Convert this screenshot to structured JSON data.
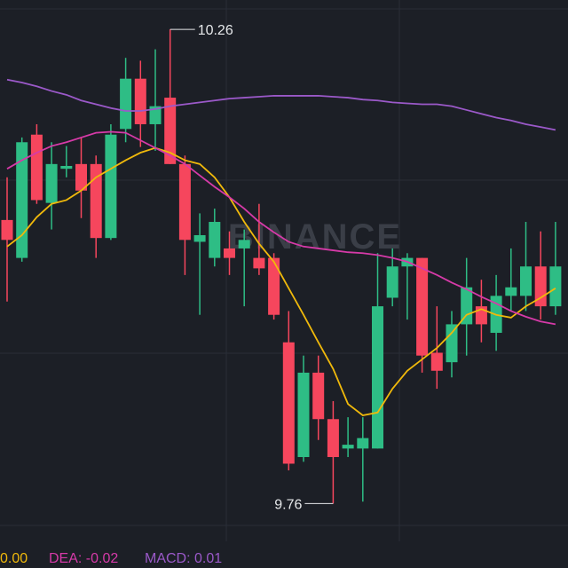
{
  "chart_data": {
    "type": "candlestick",
    "watermark": "BINANCE",
    "ylim": [
      9.692,
      10.291
    ],
    "up_color": "#2ebd85",
    "down_color": "#f6465d",
    "open": [
      10.059,
      10.019,
      10.149,
      10.077,
      10.113,
      10.118,
      10.118,
      10.04,
      10.155,
      10.208,
      10.16,
      10.188,
      10.118,
      10.036,
      10.019,
      10.029,
      10.029,
      10.019,
      10.019,
      9.93,
      9.809,
      9.898,
      9.849,
      9.818,
      9.818,
      9.818,
      9.977,
      10.01,
      10.019,
      9.919,
      9.909,
      9.949,
      9.968,
      9.94,
      9.979,
      9.979,
      10.01,
      9.968
    ],
    "high": [
      10.104,
      10.146,
      10.16,
      10.141,
      10.137,
      10.146,
      10.127,
      10.16,
      10.23,
      10.227,
      10.239,
      10.26,
      10.127,
      10.066,
      10.071,
      10.047,
      10.049,
      10.076,
      10.024,
      9.963,
      9.916,
      9.916,
      9.868,
      9.851,
      9.851,
      10.024,
      10.029,
      10.024,
      10.019,
      9.968,
      9.963,
      10.019,
      9.996,
      10.001,
      10.029,
      10.057,
      10.047,
      10.057
    ],
    "low": [
      9.973,
      10.015,
      10.076,
      10.049,
      10.104,
      10.061,
      10.019,
      10.038,
      10.141,
      10.136,
      10.132,
      10.118,
      10.001,
      9.959,
      10.01,
      10.001,
      9.968,
      10.001,
      9.954,
      9.795,
      9.804,
      9.827,
      9.76,
      9.809,
      9.762,
      9.818,
      9.968,
      9.954,
      9.898,
      9.881,
      9.893,
      9.916,
      9.93,
      9.921,
      9.963,
      9.963,
      9.954,
      9.959
    ],
    "close": [
      10.038,
      10.141,
      10.08,
      10.118,
      10.116,
      10.09,
      10.04,
      10.149,
      10.208,
      10.16,
      10.179,
      10.118,
      10.038,
      10.043,
      10.057,
      10.019,
      10.038,
      10.008,
      9.959,
      9.802,
      9.898,
      9.849,
      9.809,
      9.822,
      9.829,
      9.968,
      10.01,
      10.019,
      9.916,
      9.9,
      9.949,
      9.988,
      9.949,
      9.979,
      9.988,
      10.01,
      9.968,
      10.01
    ],
    "overlays": [
      {
        "color": "#f0b90b",
        "values": [
          10.031,
          10.043,
          10.062,
          10.076,
          10.08,
          10.09,
          10.104,
          10.113,
          10.122,
          10.13,
          10.135,
          10.13,
          10.122,
          10.118,
          10.104,
          10.083,
          10.057,
          10.034,
          10.015,
          9.987,
          9.959,
          9.93,
          9.902,
          9.865,
          9.853,
          9.856,
          9.881,
          9.9,
          9.912,
          9.924,
          9.94,
          9.959,
          9.965,
          9.959,
          9.956,
          9.968,
          9.977,
          9.987
        ]
      },
      {
        "color": "#d63aa8",
        "values": [
          10.113,
          10.122,
          10.13,
          10.137,
          10.141,
          10.146,
          10.151,
          10.152,
          10.151,
          10.143,
          10.135,
          10.127,
          10.118,
          10.106,
          10.094,
          10.083,
          10.071,
          10.057,
          10.046,
          10.036,
          10.031,
          10.029,
          10.027,
          10.025,
          10.024,
          10.022,
          10.019,
          10.015,
          10.008,
          10.001,
          9.993,
          9.986,
          9.978,
          9.971,
          9.963,
          9.957,
          9.952,
          9.949
        ]
      },
      {
        "color": "#9b59c9",
        "values": [
          10.207,
          10.204,
          10.2,
          10.195,
          10.191,
          10.185,
          10.181,
          10.177,
          10.174,
          10.174,
          10.176,
          10.179,
          10.181,
          10.183,
          10.185,
          10.187,
          10.188,
          10.189,
          10.19,
          10.19,
          10.19,
          10.19,
          10.189,
          10.188,
          10.186,
          10.185,
          10.183,
          10.182,
          10.181,
          10.181,
          10.179,
          10.175,
          10.171,
          10.167,
          10.164,
          10.16,
          10.157,
          10.154
        ]
      }
    ],
    "indicators": [
      {
        "text": "0.00",
        "color": "#f0b90b"
      },
      {
        "text": "DEA: -0.02",
        "color": "#d63aa8"
      },
      {
        "text": "MACD: 0.01",
        "color": "#9b59c9"
      }
    ]
  }
}
